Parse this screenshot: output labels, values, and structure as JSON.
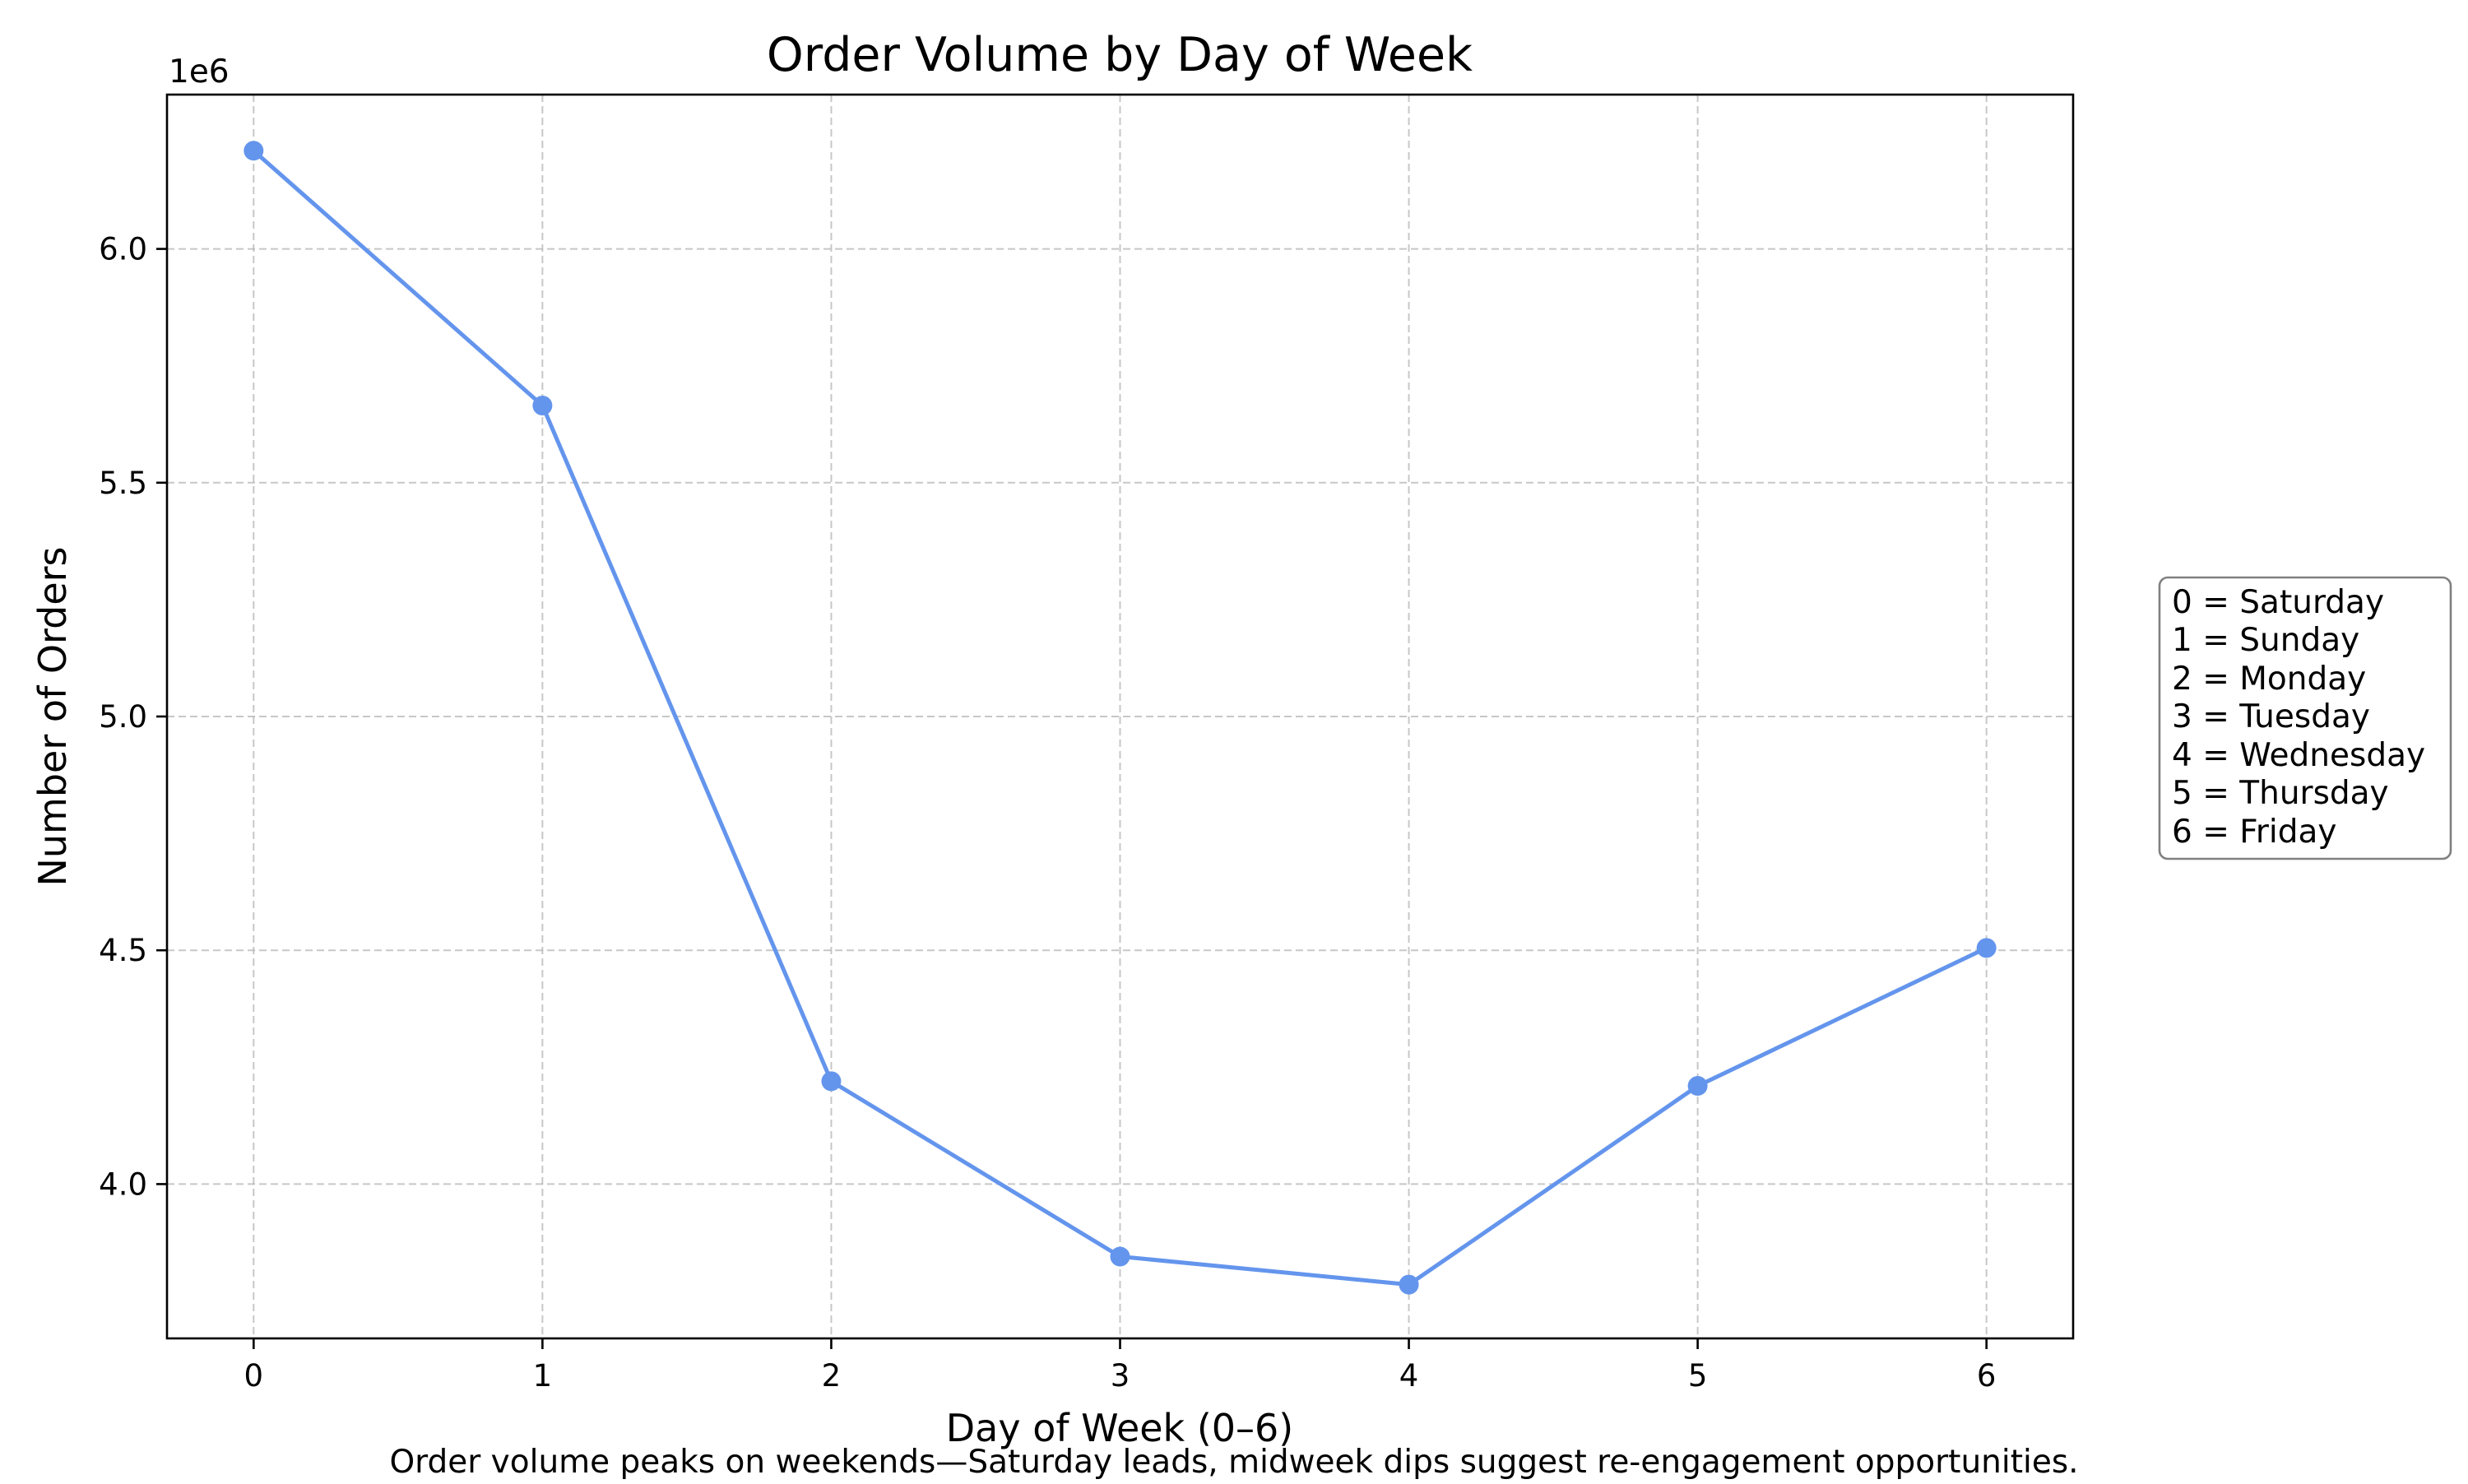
{
  "chart_data": {
    "type": "line",
    "title": "Order Volume by Day of Week",
    "xlabel": "Day of Week (0–6)",
    "ylabel": "Number of Orders",
    "y_offset_label": "1e6",
    "x": [
      0,
      1,
      2,
      3,
      4,
      5,
      6
    ],
    "x_ticks": [
      "0",
      "1",
      "2",
      "3",
      "4",
      "5",
      "6"
    ],
    "xlim": [
      -0.3,
      6.3
    ],
    "y_ticks": [
      4.0,
      4.5,
      5.0,
      5.5,
      6.0
    ],
    "y_tick_labels": [
      "4.0",
      "4.5",
      "5.0",
      "5.5",
      "6.0"
    ],
    "ylim": [
      3.67,
      6.33
    ],
    "y_unit_multiplier": 1000000,
    "series": [
      {
        "values": [
          6.21,
          5.665,
          4.22,
          3.845,
          3.785,
          4.21,
          4.505
        ],
        "color": "#6495ED",
        "marker": "circle"
      }
    ],
    "grid": true,
    "grid_style": "dashed",
    "legend": {
      "placement": "right",
      "entries": [
        "0 = Saturday",
        "1 = Sunday",
        "2 = Monday",
        "3 = Tuesday",
        "4 = Wednesday",
        "5 = Thursday",
        "6 = Friday"
      ]
    },
    "caption": "Order volume peaks on weekends—Saturday leads, midweek dips suggest re-engagement opportunities."
  }
}
